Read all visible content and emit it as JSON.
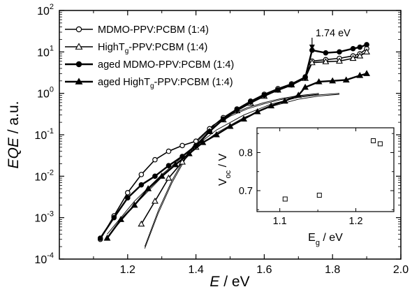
{
  "chart_data": [
    {
      "type": "line",
      "scale": {
        "x": "linear",
        "y": "log10"
      },
      "xlabel": {
        "var": "E",
        "unit": " / eV"
      },
      "ylabel": {
        "var": "EQE",
        "unit": " / a.u."
      },
      "xlim": [
        1.0,
        2.0
      ],
      "ylim": [
        0.0001,
        100
      ],
      "x_ticks": [
        "1.2",
        "1.4",
        "1.6",
        "1.8",
        "2.0"
      ],
      "x_tick_values": [
        1.2,
        1.4,
        1.6,
        1.8,
        2.0
      ],
      "y_ticks": [
        {
          "value": 100,
          "base": "10",
          "exp": "2"
        },
        {
          "value": 10,
          "base": "10",
          "exp": "1"
        },
        {
          "value": 1,
          "base": "10",
          "exp": "0"
        },
        {
          "value": 0.1,
          "base": "10",
          "exp": "-1"
        },
        {
          "value": 0.01,
          "base": "10",
          "exp": "-2"
        },
        {
          "value": 0.001,
          "base": "10",
          "exp": "-3"
        },
        {
          "value": 0.0001,
          "base": "10",
          "exp": "-4"
        }
      ],
      "grid": false,
      "legend_position": "top-left",
      "annotation": {
        "text": "1.74 eV",
        "x": 1.74,
        "y": 22,
        "arrow_to_y": 11
      },
      "series": [
        {
          "name": "MDMO-PPV:PCBM (1:4)",
          "marker": "circle-open",
          "line": "solid",
          "x": [
            1.12,
            1.16,
            1.2,
            1.24,
            1.28,
            1.32,
            1.36,
            1.4,
            1.44,
            1.48,
            1.52,
            1.56,
            1.6,
            1.64,
            1.68,
            1.72,
            1.74,
            1.78,
            1.82,
            1.86,
            1.88,
            1.9
          ],
          "y": [
            0.0003,
            0.0011,
            0.004,
            0.011,
            0.025,
            0.04,
            0.055,
            0.07,
            0.14,
            0.26,
            0.42,
            0.65,
            0.95,
            1.3,
            1.7,
            2.5,
            6.0,
            6.5,
            7.0,
            8.0,
            9.0,
            12.0
          ]
        },
        {
          "name": "HighT_g-PPV:PCBM (1:4)",
          "name_parts": {
            "pre": "HighT",
            "sub": "g",
            "post": "-PPV:PCBM (1:4)"
          },
          "marker": "triangle-open",
          "line": "solid",
          "x": [
            1.24,
            1.28,
            1.32,
            1.36,
            1.4,
            1.44,
            1.48,
            1.52,
            1.56,
            1.6,
            1.64,
            1.68,
            1.72,
            1.74,
            1.78,
            1.82,
            1.86,
            1.88,
            1.9
          ],
          "y": [
            0.0007,
            0.0025,
            0.009,
            0.022,
            0.05,
            0.12,
            0.23,
            0.38,
            0.58,
            0.85,
            1.2,
            1.6,
            2.3,
            5.5,
            5.8,
            6.0,
            7.0,
            8.0,
            10.0
          ]
        },
        {
          "name": "aged MDMO-PPV:PCBM (1:4)",
          "marker": "circle-filled",
          "line": "solid-bold",
          "x": [
            1.12,
            1.16,
            1.2,
            1.24,
            1.28,
            1.32,
            1.36,
            1.4,
            1.44,
            1.48,
            1.52,
            1.56,
            1.6,
            1.64,
            1.68,
            1.72,
            1.74,
            1.78,
            1.82,
            1.86,
            1.88,
            1.9
          ],
          "y": [
            0.00032,
            0.001,
            0.003,
            0.0062,
            0.01,
            0.018,
            0.03,
            0.055,
            0.12,
            0.24,
            0.4,
            0.62,
            0.9,
            1.2,
            1.6,
            2.4,
            11.0,
            9.5,
            10.0,
            12.0,
            13.0,
            15.0
          ]
        },
        {
          "name": "aged HighT_g-PPV:PCBM (1:4)",
          "name_parts": {
            "pre": "aged HighT",
            "sub": "g",
            "post": "-PPV:PCBM (1:4)"
          },
          "marker": "triangle-filled",
          "line": "solid-bold",
          "x": [
            1.14,
            1.18,
            1.22,
            1.26,
            1.3,
            1.34,
            1.38,
            1.42,
            1.46,
            1.5,
            1.54,
            1.58,
            1.62,
            1.66,
            1.7,
            1.72,
            1.76,
            1.8,
            1.84,
            1.88,
            1.9
          ],
          "y": [
            0.00032,
            0.0009,
            0.002,
            0.005,
            0.01,
            0.019,
            0.035,
            0.065,
            0.1,
            0.16,
            0.24,
            0.36,
            0.5,
            0.65,
            0.9,
            1.4,
            1.9,
            2.0,
            2.1,
            2.7,
            3.0
          ]
        }
      ],
      "fit_curves": [
        {
          "x": [
            1.14,
            1.22,
            1.3,
            1.38,
            1.46,
            1.54,
            1.62,
            1.7,
            1.76,
            1.82
          ],
          "y": [
            0.0004,
            0.0025,
            0.011,
            0.04,
            0.13,
            0.3,
            0.55,
            0.8,
            0.92,
            1.0
          ]
        },
        {
          "x": [
            1.14,
            1.22,
            1.3,
            1.38,
            1.46,
            1.54,
            1.62,
            1.7,
            1.76,
            1.82
          ],
          "y": [
            0.00034,
            0.002,
            0.0095,
            0.036,
            0.11,
            0.26,
            0.48,
            0.72,
            0.86,
            0.95
          ]
        },
        {
          "x": [
            1.25,
            1.29,
            1.33,
            1.37,
            1.41,
            1.45,
            1.5,
            1.55,
            1.6,
            1.65,
            1.7,
            1.76
          ],
          "y": [
            0.0002,
            0.0015,
            0.008,
            0.03,
            0.085,
            0.17,
            0.3,
            0.45,
            0.6,
            0.75,
            0.88,
            1.0
          ]
        },
        {
          "x": [
            1.25,
            1.29,
            1.33,
            1.37,
            1.41,
            1.45,
            1.5,
            1.55,
            1.6,
            1.65,
            1.7,
            1.76
          ],
          "y": [
            0.00018,
            0.0013,
            0.007,
            0.027,
            0.077,
            0.155,
            0.28,
            0.42,
            0.56,
            0.71,
            0.84,
            0.95
          ]
        }
      ]
    },
    {
      "type": "scatter",
      "inset": true,
      "xlabel": {
        "var": "E",
        "sub": "g",
        "unit": " / eV"
      },
      "ylabel": {
        "var": "V",
        "sub": "oc",
        "unit": " / V"
      },
      "xlim": [
        1.07,
        1.25
      ],
      "ylim": [
        0.645,
        0.865
      ],
      "x_ticks": [
        "1.1",
        "1.2"
      ],
      "x_tick_values": [
        1.1,
        1.2
      ],
      "y_ticks": [
        "0.7",
        "0.8"
      ],
      "y_tick_values": [
        0.7,
        0.8
      ],
      "marker": "square-open",
      "points": [
        {
          "x": 1.107,
          "y": 0.678
        },
        {
          "x": 1.152,
          "y": 0.688
        },
        {
          "x": 1.223,
          "y": 0.831
        },
        {
          "x": 1.232,
          "y": 0.823
        }
      ]
    }
  ]
}
